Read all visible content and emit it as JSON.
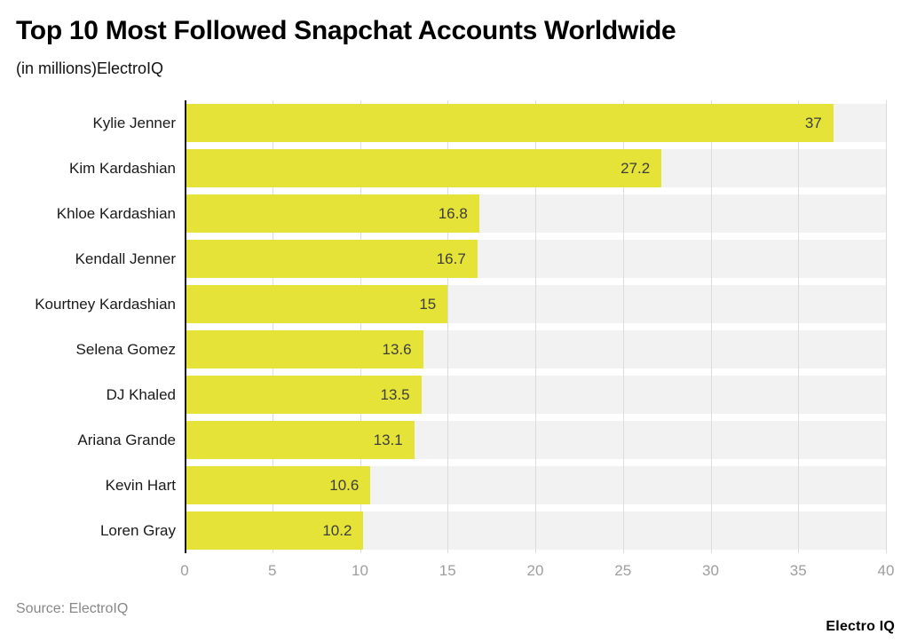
{
  "page": {
    "title": "Top 10 Most Followed Snapchat Accounts Worldwide",
    "subtitle": "(in millions)ElectroIQ",
    "source_note": "Source: ElectroIQ",
    "brand": "Electro IQ"
  },
  "chart_data": {
    "type": "bar",
    "orientation": "horizontal",
    "title": "Top 10 Most Followed Snapchat Accounts Worldwide",
    "subtitle": "(in millions)ElectroIQ",
    "categories": [
      "Kylie Jenner",
      "Kim Kardashian",
      "Khloe Kardashian",
      "Kendall Jenner",
      "Kourtney Kardashian",
      "Selena Gomez",
      "DJ Khaled",
      "Ariana Grande",
      "Kevin Hart",
      "Loren Gray"
    ],
    "values": [
      37,
      27.2,
      16.8,
      16.7,
      15,
      13.6,
      13.5,
      13.1,
      10.6,
      10.2
    ],
    "value_labels": [
      "37",
      "27.2",
      "16.8",
      "16.7",
      "15",
      "13.6",
      "13.5",
      "13.1",
      "10.6",
      "10.2"
    ],
    "xlabel": "",
    "ylabel": "",
    "xlim": [
      0,
      40
    ],
    "xticks": [
      0,
      5,
      10,
      15,
      20,
      25,
      30,
      35,
      40
    ],
    "grid": true,
    "legend": "none",
    "colors": {
      "bar": "#e5e338",
      "plot_background": "#f2f2f2",
      "gridline": "#dcdcdc",
      "axis_line": "#111111",
      "tick_label": "#9e9e9e",
      "value_label": "#3d3d3d",
      "category_label": "#1a1a1a"
    }
  }
}
